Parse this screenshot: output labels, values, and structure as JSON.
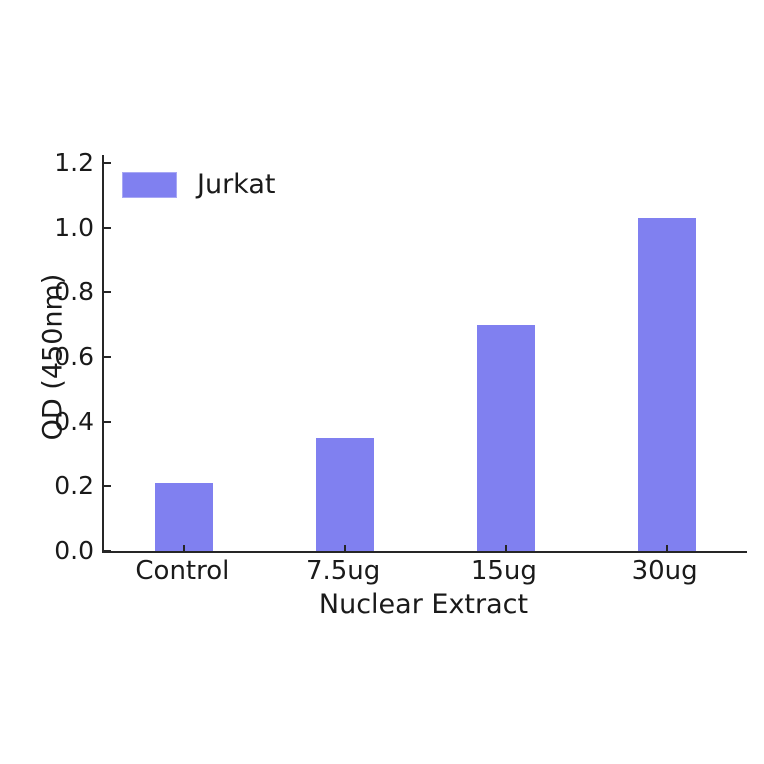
{
  "chart_data": {
    "type": "bar",
    "title": "",
    "xlabel": "Nuclear Extract",
    "ylabel": "OD (450nm)",
    "categories": [
      "Control",
      "7.5ug",
      "15ug",
      "30ug"
    ],
    "series": [
      {
        "name": "Jurkat",
        "values": [
          0.21,
          0.35,
          0.7,
          1.03
        ]
      }
    ],
    "ylim": [
      0.0,
      1.2
    ],
    "yticks": [
      0.0,
      0.2,
      0.4,
      0.6,
      0.8,
      1.0,
      1.2
    ],
    "grid": false,
    "legend_position": "upper-left",
    "colors": {
      "bar": "#8080f0",
      "axis": "#262626",
      "text": "#1a1a1a",
      "background": "#ffffff"
    }
  }
}
